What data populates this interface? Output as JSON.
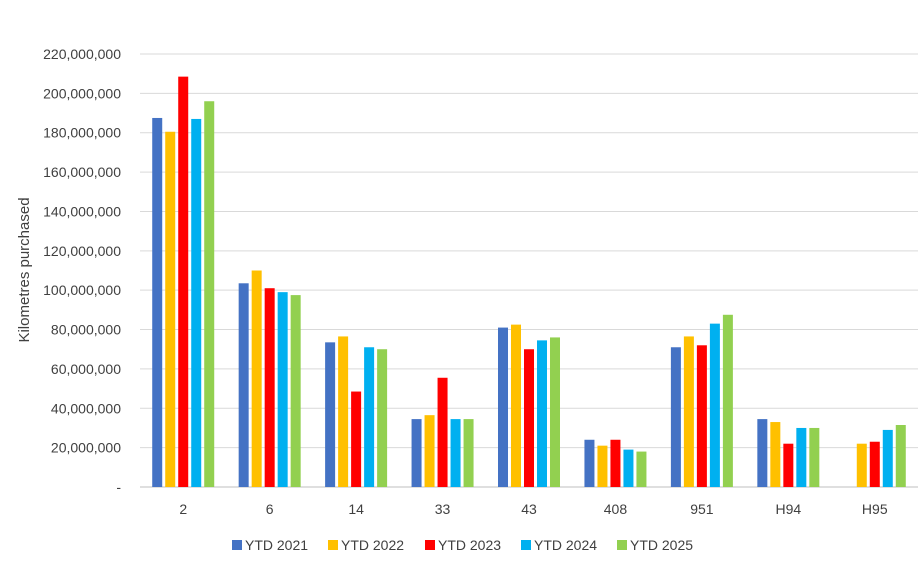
{
  "chart_data": {
    "type": "bar",
    "title": "",
    "xlabel": "",
    "ylabel": "Kilometres purchased",
    "ylim": [
      0,
      220000000
    ],
    "ytick_step": 20000000,
    "ytick_labels": [
      "-",
      "20,000,000",
      "40,000,000",
      "60,000,000",
      "80,000,000",
      "100,000,000",
      "120,000,000",
      "140,000,000",
      "160,000,000",
      "180,000,000",
      "200,000,000",
      "220,000,000"
    ],
    "grid": true,
    "legend_position": "bottom",
    "categories": [
      "2",
      "6",
      "14",
      "33",
      "43",
      "408",
      "951",
      "H94",
      "H95"
    ],
    "series": [
      {
        "name": "YTD 2021",
        "color": "#4472C4",
        "values": [
          187500000,
          103500000,
          73500000,
          34500000,
          81000000,
          24000000,
          71000000,
          34500000,
          null
        ]
      },
      {
        "name": "YTD 2022",
        "color": "#FFC000",
        "values": [
          180500000,
          110000000,
          76500000,
          36500000,
          82500000,
          21000000,
          76500000,
          33000000,
          22000000
        ]
      },
      {
        "name": "YTD 2023",
        "color": "#FF0000",
        "values": [
          208500000,
          101000000,
          48500000,
          55500000,
          70000000,
          24000000,
          72000000,
          22000000,
          23000000
        ]
      },
      {
        "name": "YTD 2024",
        "color": "#00B0F0",
        "values": [
          187000000,
          99000000,
          71000000,
          34500000,
          74500000,
          19000000,
          83000000,
          30000000,
          29000000
        ]
      },
      {
        "name": "YTD 2025",
        "color": "#92D050",
        "values": [
          196000000,
          97500000,
          70000000,
          34500000,
          76000000,
          18000000,
          87500000,
          30000000,
          31500000
        ]
      }
    ]
  }
}
